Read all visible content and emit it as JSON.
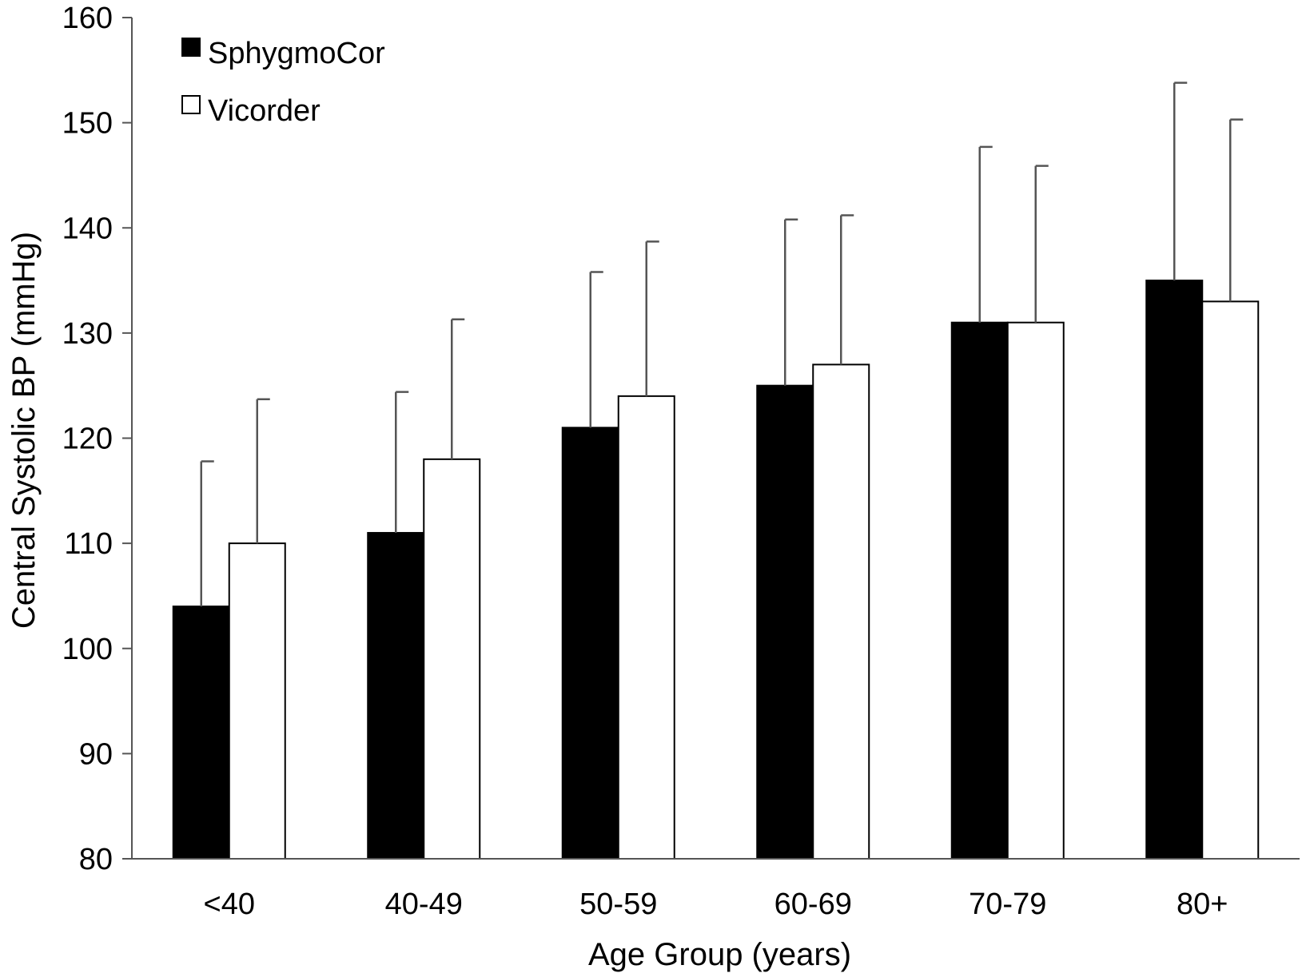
{
  "chart_data": {
    "type": "bar",
    "title": "",
    "xlabel": "Age Group (years)",
    "ylabel": "Central Systolic BP (mmHg)",
    "ylim": [
      80,
      160
    ],
    "yticks": [
      80,
      90,
      100,
      110,
      120,
      130,
      140,
      150,
      160
    ],
    "categories": [
      "<40",
      "40-49",
      "50-59",
      "60-69",
      "70-79",
      "80+"
    ],
    "series": [
      {
        "name": "SphygmoCor",
        "color": "#000000",
        "values": [
          104,
          111,
          121,
          125,
          131,
          135
        ],
        "error": [
          13.8,
          13.4,
          14.8,
          15.8,
          16.7,
          18.8
        ]
      },
      {
        "name": "Vicorder",
        "color": "#ffffff",
        "values": [
          110,
          118,
          124,
          127,
          131,
          133
        ],
        "error": [
          13.7,
          13.3,
          14.7,
          14.2,
          14.9,
          17.3
        ]
      }
    ],
    "legend_position": "top-left",
    "grid": false
  }
}
